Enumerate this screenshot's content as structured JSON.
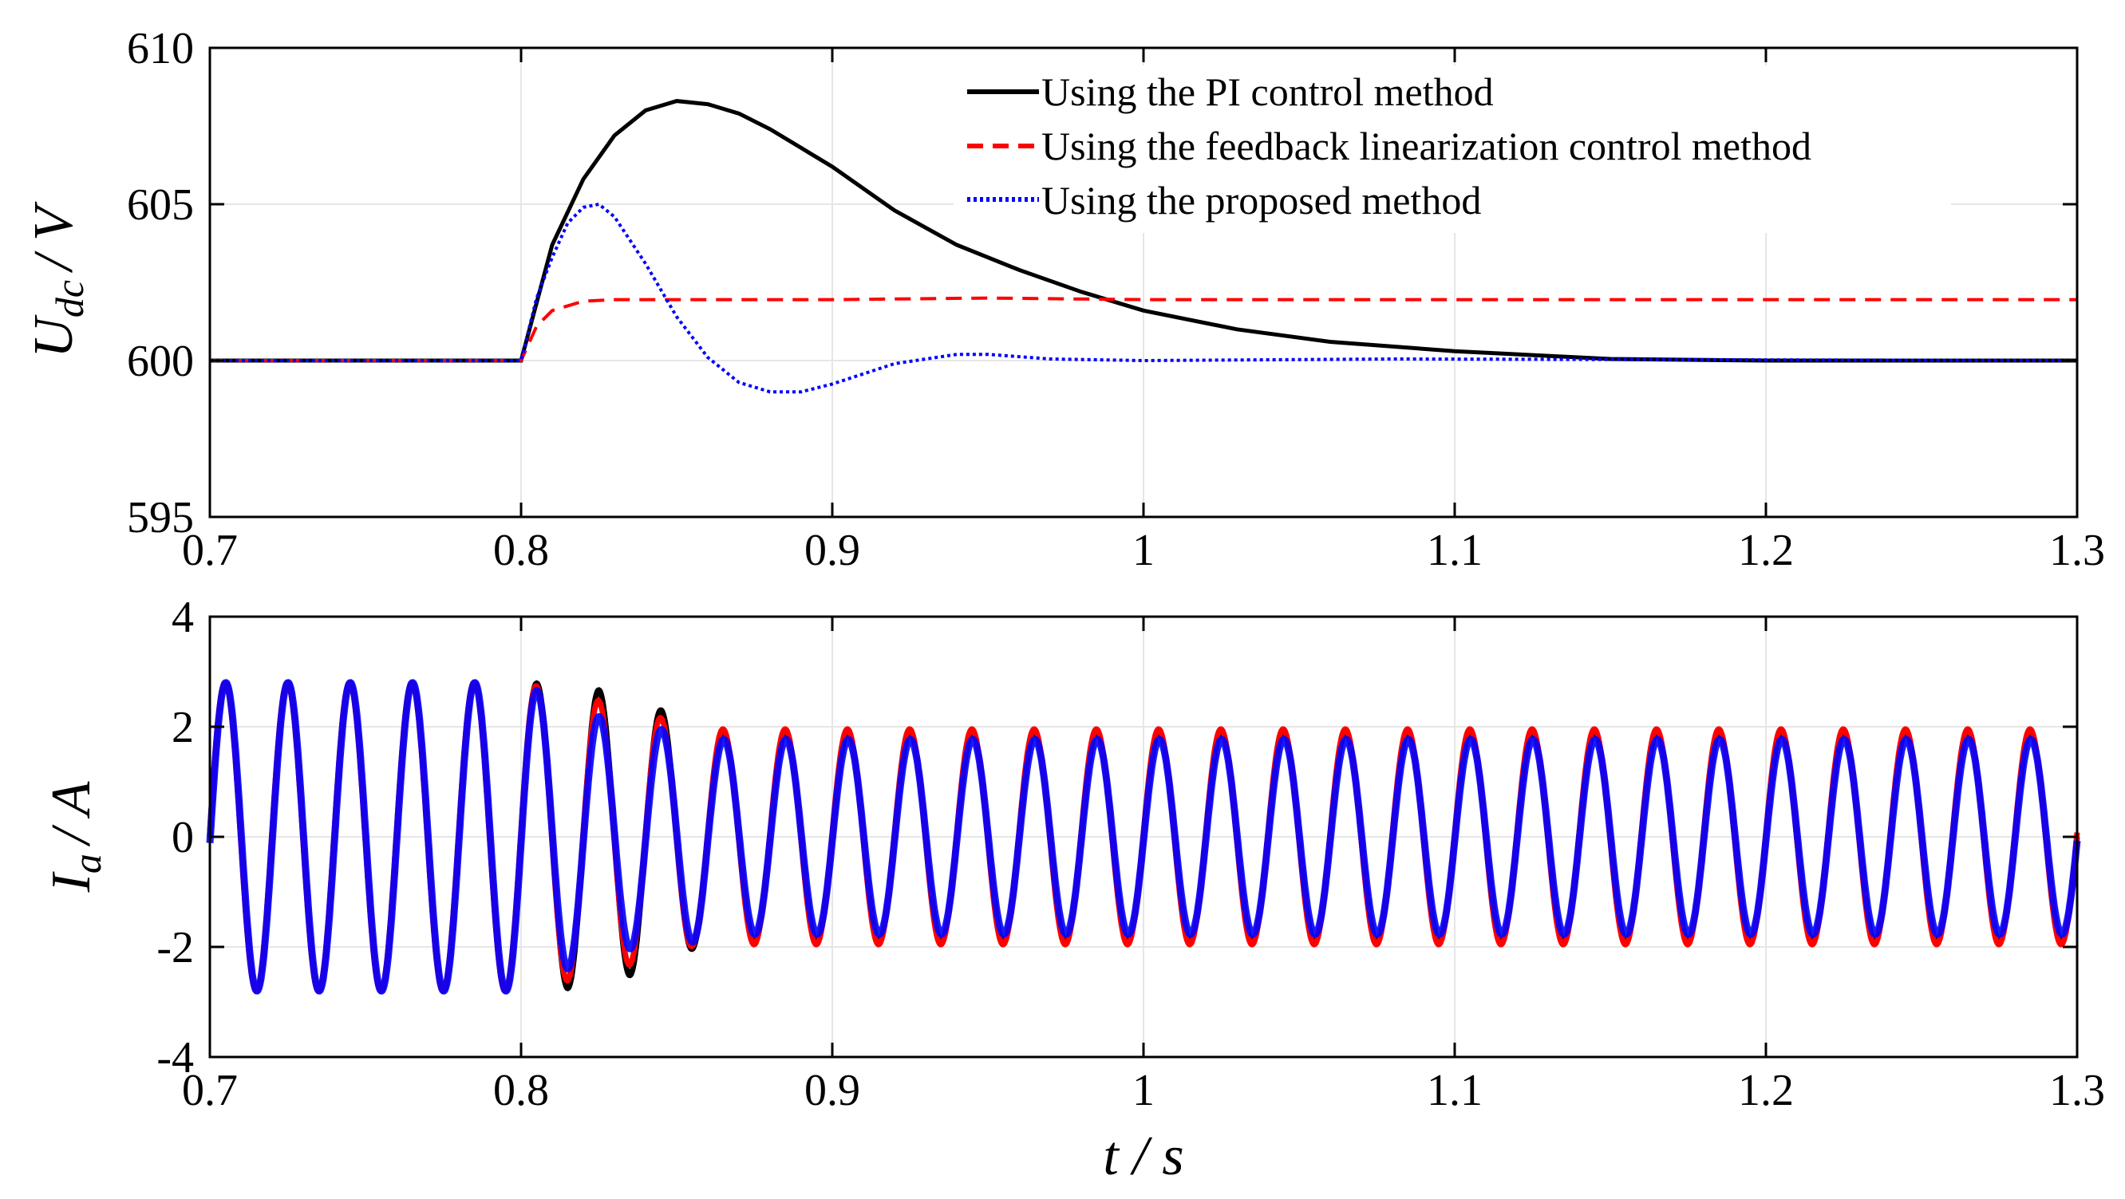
{
  "colors": {
    "pi": "#000000",
    "fl": "#ff0000",
    "proposed": "#0000ff"
  },
  "chart_data": [
    {
      "type": "line",
      "id": "top",
      "title": "",
      "ylabel": {
        "main": "U",
        "sub": "dc",
        "rest": "/ V"
      },
      "xlabel": "",
      "xlim": [
        0.7,
        1.3
      ],
      "ylim": [
        595,
        610
      ],
      "xticks": [
        0.7,
        0.8,
        0.9,
        1.0,
        1.1,
        1.2,
        1.3
      ],
      "xtick_labels": [
        "0.7",
        "0.8",
        "0.9",
        "1",
        "1.1",
        "1.2",
        "1.3"
      ],
      "yticks": [
        595,
        600,
        605,
        610
      ],
      "ytick_labels": [
        "595",
        "600",
        "605",
        "610"
      ],
      "grid": true,
      "legend": {
        "position": "top-center",
        "entries": [
          {
            "label": "Using the PI control method",
            "style": "solid",
            "color": "#000000"
          },
          {
            "label": "Using the feedback linearization control method",
            "style": "dashed",
            "color": "#ff0000"
          },
          {
            "label": "Using the proposed method",
            "style": "dotted",
            "color": "#0000ff"
          }
        ]
      },
      "series": [
        {
          "name": "Using the PI control method",
          "style": "solid",
          "color": "#000000",
          "points": [
            [
              0.7,
              600
            ],
            [
              0.8,
              600
            ],
            [
              0.81,
              603.7
            ],
            [
              0.82,
              605.8
            ],
            [
              0.83,
              607.2
            ],
            [
              0.84,
              608
            ],
            [
              0.85,
              608.3
            ],
            [
              0.86,
              608.2
            ],
            [
              0.87,
              607.9
            ],
            [
              0.88,
              607.4
            ],
            [
              0.89,
              606.8
            ],
            [
              0.9,
              606.2
            ],
            [
              0.92,
              604.8
            ],
            [
              0.94,
              603.7
            ],
            [
              0.96,
              602.9
            ],
            [
              0.98,
              602.2
            ],
            [
              1.0,
              601.6
            ],
            [
              1.03,
              601.0
            ],
            [
              1.06,
              600.6
            ],
            [
              1.1,
              600.3
            ],
            [
              1.15,
              600.05
            ],
            [
              1.2,
              600
            ],
            [
              1.3,
              600
            ]
          ]
        },
        {
          "name": "Using the feedback linearization control method",
          "style": "dashed",
          "color": "#ff0000",
          "points": [
            [
              0.7,
              600
            ],
            [
              0.8,
              600
            ],
            [
              0.805,
              601.1
            ],
            [
              0.81,
              601.6
            ],
            [
              0.82,
              601.9
            ],
            [
              0.83,
              601.95
            ],
            [
              0.9,
              601.95
            ],
            [
              0.95,
              602.0
            ],
            [
              1.0,
              601.95
            ],
            [
              1.1,
              601.95
            ],
            [
              1.3,
              601.95
            ]
          ]
        },
        {
          "name": "Using the proposed method",
          "style": "dotted",
          "color": "#0000ff",
          "points": [
            [
              0.7,
              600
            ],
            [
              0.8,
              600
            ],
            [
              0.805,
              602
            ],
            [
              0.81,
              603.3
            ],
            [
              0.815,
              604.4
            ],
            [
              0.82,
              604.9
            ],
            [
              0.825,
              605
            ],
            [
              0.83,
              604.6
            ],
            [
              0.84,
              603.1
            ],
            [
              0.85,
              601.4
            ],
            [
              0.86,
              600.1
            ],
            [
              0.87,
              599.3
            ],
            [
              0.88,
              599
            ],
            [
              0.89,
              599
            ],
            [
              0.9,
              599.25
            ],
            [
              0.92,
              599.9
            ],
            [
              0.94,
              600.2
            ],
            [
              0.95,
              600.2
            ],
            [
              0.97,
              600.05
            ],
            [
              1.0,
              600
            ],
            [
              1.08,
              600.05
            ],
            [
              1.3,
              600
            ]
          ]
        }
      ]
    },
    {
      "type": "line",
      "id": "bottom",
      "title": "",
      "ylabel": {
        "main": "I",
        "sub": "a",
        "rest": "/ A"
      },
      "xlabel": "t / s",
      "xlim": [
        0.7,
        1.3
      ],
      "ylim": [
        -4,
        4
      ],
      "xticks": [
        0.7,
        0.8,
        0.9,
        1.0,
        1.1,
        1.2,
        1.3
      ],
      "xtick_labels": [
        "0.7",
        "0.8",
        "0.9",
        "1",
        "1.1",
        "1.2",
        "1.3"
      ],
      "yticks": [
        -4,
        -2,
        0,
        2,
        4
      ],
      "ytick_labels": [
        "-4",
        "-2",
        "0",
        "2",
        "4"
      ],
      "grid": true,
      "frequency_hz": 50,
      "amplitude_before": 2.8,
      "amplitude_after": 1.9,
      "transition_start": 0.8,
      "transition_end": 0.86,
      "series": [
        {
          "name": "Using the PI control method",
          "color": "#000000"
        },
        {
          "name": "Using the feedback linearization control method",
          "color": "#ff0000"
        },
        {
          "name": "Using the proposed method",
          "color": "#0000ff"
        }
      ]
    }
  ]
}
